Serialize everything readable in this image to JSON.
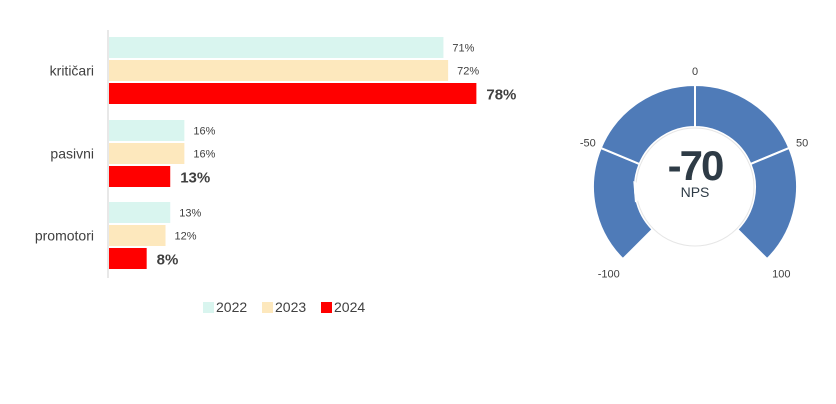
{
  "chart_data": [
    {
      "type": "bar",
      "orientation": "horizontal",
      "categories": [
        "kritičari",
        "pasivni",
        "promotori"
      ],
      "series": [
        {
          "name": "2022",
          "values": [
            71,
            16,
            13
          ],
          "labels": [
            "71%",
            "16%",
            "13%"
          ],
          "color": "#d9f5ef"
        },
        {
          "name": "2023",
          "values": [
            72,
            16,
            12
          ],
          "labels": [
            "72%",
            "16%",
            "12%"
          ],
          "color": "#fde8bd"
        },
        {
          "name": "2024",
          "values": [
            78,
            13,
            8
          ],
          "labels": [
            "78%",
            "13%",
            "8%"
          ],
          "color": "#ff0000"
        }
      ],
      "xlim": [
        0,
        100
      ],
      "legend": "bottom",
      "grid": false
    },
    {
      "type": "gauge",
      "value": -70,
      "value_label": "-70",
      "unit_label": "NPS",
      "range": [
        -100,
        100
      ],
      "ticks": [
        {
          "value": -100,
          "label": "-100"
        },
        {
          "value": -50,
          "label": "-50"
        },
        {
          "value": 0,
          "label": "0"
        },
        {
          "value": 50,
          "label": "50"
        },
        {
          "value": 100,
          "label": "100"
        }
      ],
      "color": "#4f7bb8"
    }
  ]
}
